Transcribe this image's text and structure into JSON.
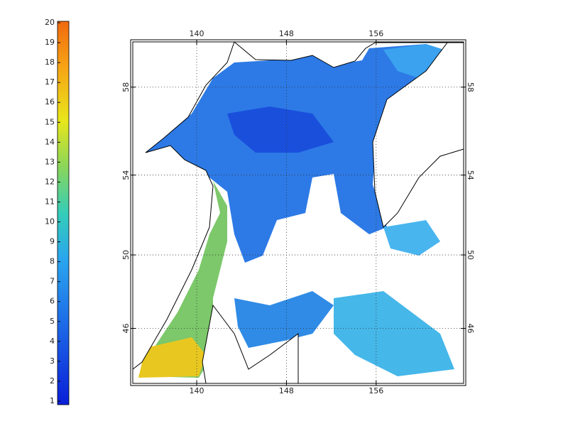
{
  "colorbar": {
    "lim": [
      1,
      20
    ],
    "ticks": [
      1,
      2,
      3,
      4,
      5,
      6,
      7,
      8,
      9,
      10,
      11,
      12,
      13,
      14,
      15,
      16,
      17,
      18,
      19,
      20
    ]
  },
  "map": {
    "projection": "mercator",
    "xlim": [
      134.3,
      163.8
    ],
    "ylim": [
      42.8,
      59.9
    ],
    "xticks": [
      140,
      148,
      156
    ],
    "yticks": [
      46,
      50,
      54,
      58
    ],
    "grid": true
  }
}
